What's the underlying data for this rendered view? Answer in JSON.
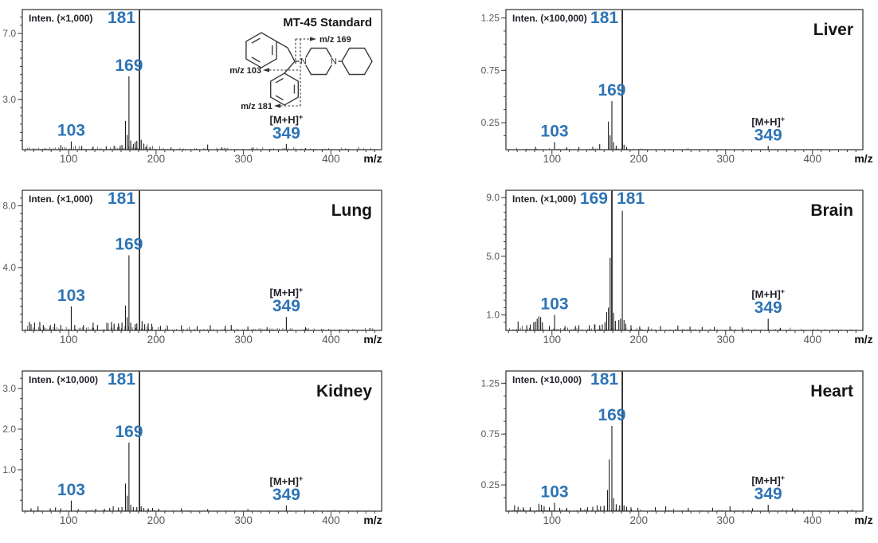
{
  "colors": {
    "peak_label_blue": "#2E74B5",
    "tick_label_gray": "#58585A",
    "axis_color": "#3D3D3D",
    "trace_color": "#1B1B1B",
    "background": "#FFFFFF"
  },
  "x_axis": {
    "label": "m/z",
    "major_ticks": [
      100,
      200,
      300,
      400
    ],
    "minor_step": 10,
    "range": [
      47,
      458
    ]
  },
  "annotations": {
    "mh_base": "[M+H]",
    "mh_sup": "+"
  },
  "structure_labels": {
    "frag_169": "m/z 169",
    "frag_103": "m/z 103",
    "frag_181": "m/z 181",
    "nitrogen": "N"
  },
  "chart_data": [
    {
      "type": "bar",
      "id": "mt45-standard",
      "title": "MT-45 Standard",
      "intensity_label": "Inten. (×1,000)",
      "ylabel": "Intensity (×1,000)",
      "y_ticks": [
        {
          "v": 3,
          "label": "3.0"
        },
        {
          "v": 7,
          "label": "7.0"
        }
      ],
      "y_max": 8.45,
      "y_minor_step": 0.5,
      "noise_level": 0.22,
      "seed": 11,
      "has_structure": true,
      "peaks": [
        [
          91,
          0.22
        ],
        [
          103,
          0.45
        ],
        [
          115,
          0.18
        ],
        [
          128,
          0.15
        ],
        [
          143,
          0.16
        ],
        [
          152,
          0.2
        ],
        [
          159,
          0.2
        ],
        [
          161,
          0.24
        ],
        [
          165,
          1.7
        ],
        [
          167,
          0.85
        ],
        [
          169,
          4.4
        ],
        [
          171,
          0.5
        ],
        [
          174,
          0.3
        ],
        [
          176,
          0.42
        ],
        [
          178,
          0.48
        ],
        [
          181,
          null
        ],
        [
          183,
          0.55
        ],
        [
          186,
          0.32
        ],
        [
          189,
          0.14
        ],
        [
          193,
          0.12
        ],
        [
          217,
          0.09
        ],
        [
          259,
          0.26
        ],
        [
          275,
          0.1
        ],
        [
          311,
          0.09
        ],
        [
          349,
          0.3
        ],
        [
          371,
          0.05
        ]
      ],
      "labels": [
        {
          "mz": 103,
          "text": "103",
          "pos": "above"
        },
        {
          "mz": 169,
          "text": "169",
          "pos": "above"
        },
        {
          "mz": 181,
          "text": "181",
          "pos": "top-left"
        },
        {
          "mz": 349,
          "text": "349",
          "pos": "above",
          "mh": true
        }
      ]
    },
    {
      "type": "bar",
      "id": "liver",
      "title": "Liver",
      "intensity_label": "Inten. (×100,000)",
      "ylabel": "Intensity (×100,000)",
      "y_ticks": [
        {
          "v": 0.25,
          "label": "0.25"
        },
        {
          "v": 0.75,
          "label": "0.75"
        },
        {
          "v": 1.25,
          "label": "1.25"
        }
      ],
      "y_max": 1.33,
      "y_minor_step": 0.125,
      "noise_level": 0.013,
      "seed": 22,
      "has_structure": false,
      "peaks": [
        [
          81,
          0.02
        ],
        [
          103,
          0.065
        ],
        [
          117,
          0.015
        ],
        [
          131,
          0.018
        ],
        [
          147,
          0.02
        ],
        [
          155,
          0.045
        ],
        [
          165,
          0.26
        ],
        [
          167,
          0.13
        ],
        [
          169,
          0.455
        ],
        [
          171,
          0.065
        ],
        [
          174,
          0.03
        ],
        [
          181,
          null
        ],
        [
          183,
          0.04
        ],
        [
          186,
          0.02
        ],
        [
          349,
          0.028
        ]
      ],
      "labels": [
        {
          "mz": 103,
          "text": "103",
          "pos": "above"
        },
        {
          "mz": 169,
          "text": "169",
          "pos": "above"
        },
        {
          "mz": 181,
          "text": "181",
          "pos": "top-left"
        },
        {
          "mz": 349,
          "text": "349",
          "pos": "above",
          "mh": true
        }
      ]
    },
    {
      "type": "bar",
      "id": "lung",
      "title": "Lung",
      "intensity_label": "Inten. (×1,000)",
      "ylabel": "Intensity (×1,000)",
      "y_ticks": [
        {
          "v": 4,
          "label": "4.0"
        },
        {
          "v": 8,
          "label": "8.0"
        }
      ],
      "y_max": 9.0,
      "y_minor_step": 0.5,
      "noise_level": 0.28,
      "seed": 33,
      "has_structure": false,
      "peaks": [
        [
          55,
          0.5
        ],
        [
          57,
          0.35
        ],
        [
          61,
          0.45
        ],
        [
          67,
          0.5
        ],
        [
          71,
          0.3
        ],
        [
          79,
          0.3
        ],
        [
          84,
          0.38
        ],
        [
          91,
          0.3
        ],
        [
          103,
          1.5
        ],
        [
          107,
          0.3
        ],
        [
          117,
          0.3
        ],
        [
          128,
          0.45
        ],
        [
          133,
          0.3
        ],
        [
          145,
          0.42
        ],
        [
          149,
          0.5
        ],
        [
          152,
          0.38
        ],
        [
          157,
          0.4
        ],
        [
          161,
          0.45
        ],
        [
          165,
          1.55
        ],
        [
          167,
          0.8
        ],
        [
          169,
          4.8
        ],
        [
          171,
          0.45
        ],
        [
          176,
          0.35
        ],
        [
          178,
          0.4
        ],
        [
          181,
          null
        ],
        [
          184,
          0.55
        ],
        [
          187,
          0.35
        ],
        [
          191,
          0.4
        ],
        [
          195,
          0.38
        ],
        [
          205,
          0.25
        ],
        [
          213,
          0.22
        ],
        [
          229,
          0.28
        ],
        [
          247,
          0.22
        ],
        [
          262,
          0.28
        ],
        [
          279,
          0.25
        ],
        [
          286,
          0.3
        ],
        [
          305,
          0.2
        ],
        [
          327,
          0.15
        ],
        [
          349,
          0.82
        ],
        [
          371,
          0.15
        ]
      ],
      "labels": [
        {
          "mz": 103,
          "text": "103",
          "pos": "above"
        },
        {
          "mz": 169,
          "text": "169",
          "pos": "above"
        },
        {
          "mz": 181,
          "text": "181",
          "pos": "top-left"
        },
        {
          "mz": 349,
          "text": "349",
          "pos": "above",
          "mh": true
        }
      ]
    },
    {
      "type": "bar",
      "id": "brain",
      "title": "Brain",
      "intensity_label": "Inten. (×1,000)",
      "ylabel": "Intensity (×1,000)",
      "y_ticks": [
        {
          "v": 1,
          "label": "1.0"
        },
        {
          "v": 5,
          "label": "5.0"
        },
        {
          "v": 9,
          "label": "9.0"
        }
      ],
      "y_max": 9.5,
      "y_minor_step": 0.5,
      "noise_level": 0.2,
      "seed": 44,
      "has_structure": false,
      "peaks": [
        [
          61,
          0.55
        ],
        [
          71,
          0.3
        ],
        [
          75,
          0.35
        ],
        [
          79,
          0.5
        ],
        [
          81,
          0.55
        ],
        [
          83,
          0.75
        ],
        [
          85,
          0.9
        ],
        [
          87,
          0.85
        ],
        [
          89,
          0.5
        ],
        [
          97,
          0.25
        ],
        [
          103,
          1.0
        ],
        [
          115,
          0.25
        ],
        [
          127,
          0.25
        ],
        [
          131,
          0.3
        ],
        [
          143,
          0.3
        ],
        [
          149,
          0.35
        ],
        [
          155,
          0.3
        ],
        [
          158,
          0.35
        ],
        [
          161,
          0.5
        ],
        [
          163,
          1.2
        ],
        [
          165,
          1.5
        ],
        [
          167,
          4.9
        ],
        [
          169,
          null
        ],
        [
          171,
          1.15
        ],
        [
          173,
          0.6
        ],
        [
          177,
          0.65
        ],
        [
          179,
          0.75
        ],
        [
          181,
          8.1
        ],
        [
          183,
          0.65
        ],
        [
          185,
          0.4
        ],
        [
          191,
          0.3
        ],
        [
          201,
          0.22
        ],
        [
          211,
          0.2
        ],
        [
          225,
          0.25
        ],
        [
          245,
          0.28
        ],
        [
          259,
          0.2
        ],
        [
          273,
          0.18
        ],
        [
          287,
          0.18
        ],
        [
          305,
          0.22
        ],
        [
          319,
          0.15
        ],
        [
          349,
          0.75
        ],
        [
          363,
          0.12
        ]
      ],
      "labels": [
        {
          "mz": 103,
          "text": "103",
          "pos": "above"
        },
        {
          "mz": 169,
          "text": "169",
          "pos": "top-left"
        },
        {
          "mz": 181,
          "text": "181",
          "pos": "top-right"
        },
        {
          "mz": 349,
          "text": "349",
          "pos": "above",
          "mh": true
        }
      ]
    },
    {
      "type": "bar",
      "id": "kidney",
      "title": "Kidney",
      "intensity_label": "Inten. (×10,000)",
      "ylabel": "Intensity (×10,000)",
      "y_ticks": [
        {
          "v": 1,
          "label": "1.0"
        },
        {
          "v": 2,
          "label": "2.0"
        },
        {
          "v": 3,
          "label": "3.0"
        }
      ],
      "y_max": 3.43,
      "y_minor_step": 0.25,
      "noise_level": 0.03,
      "seed": 55,
      "has_structure": false,
      "peaks": [
        [
          57,
          0.05
        ],
        [
          65,
          0.1
        ],
        [
          79,
          0.05
        ],
        [
          85,
          0.07
        ],
        [
          91,
          0.05
        ],
        [
          103,
          0.24
        ],
        [
          111,
          0.03
        ],
        [
          131,
          0.04
        ],
        [
          141,
          0.04
        ],
        [
          147,
          0.06
        ],
        [
          151,
          0.1
        ],
        [
          157,
          0.07
        ],
        [
          161,
          0.08
        ],
        [
          165,
          0.66
        ],
        [
          167,
          0.36
        ],
        [
          169,
          1.67
        ],
        [
          171,
          0.14
        ],
        [
          174,
          0.08
        ],
        [
          178,
          0.08
        ],
        [
          181,
          null
        ],
        [
          183,
          0.1
        ],
        [
          186,
          0.06
        ],
        [
          191,
          0.05
        ],
        [
          196,
          0.06
        ],
        [
          203,
          0.04
        ],
        [
          229,
          0.05
        ],
        [
          259,
          0.03
        ],
        [
          305,
          0.03
        ],
        [
          349,
          0.12
        ]
      ],
      "labels": [
        {
          "mz": 103,
          "text": "103",
          "pos": "above"
        },
        {
          "mz": 169,
          "text": "169",
          "pos": "above"
        },
        {
          "mz": 181,
          "text": "181",
          "pos": "top-left"
        },
        {
          "mz": 349,
          "text": "349",
          "pos": "above",
          "mh": true
        }
      ]
    },
    {
      "type": "bar",
      "id": "heart",
      "title": "Heart",
      "intensity_label": "Inten. (×10,000)",
      "ylabel": "Intensity (×10,000)",
      "y_ticks": [
        {
          "v": 0.25,
          "label": "0.25"
        },
        {
          "v": 0.75,
          "label": "0.75"
        },
        {
          "v": 1.25,
          "label": "1.25"
        }
      ],
      "y_max": 1.37,
      "y_minor_step": 0.125,
      "noise_level": 0.022,
      "seed": 66,
      "has_structure": false,
      "peaks": [
        [
          57,
          0.05
        ],
        [
          61,
          0.035
        ],
        [
          67,
          0.03
        ],
        [
          75,
          0.03
        ],
        [
          85,
          0.065
        ],
        [
          88,
          0.055
        ],
        [
          91,
          0.04
        ],
        [
          97,
          0.03
        ],
        [
          103,
          0.075
        ],
        [
          109,
          0.025
        ],
        [
          117,
          0.025
        ],
        [
          133,
          0.025
        ],
        [
          141,
          0.03
        ],
        [
          147,
          0.035
        ],
        [
          152,
          0.05
        ],
        [
          156,
          0.04
        ],
        [
          160,
          0.045
        ],
        [
          164,
          0.2
        ],
        [
          166,
          0.5
        ],
        [
          169,
          0.83
        ],
        [
          171,
          0.12
        ],
        [
          174,
          0.06
        ],
        [
          178,
          0.05
        ],
        [
          181,
          null
        ],
        [
          183,
          0.05
        ],
        [
          186,
          0.035
        ],
        [
          191,
          0.03
        ],
        [
          199,
          0.025
        ],
        [
          219,
          0.03
        ],
        [
          231,
          0.04
        ],
        [
          257,
          0.025
        ],
        [
          285,
          0.025
        ],
        [
          305,
          0.04
        ],
        [
          331,
          0.02
        ],
        [
          349,
          0.055
        ],
        [
          377,
          0.02
        ]
      ],
      "labels": [
        {
          "mz": 103,
          "text": "103",
          "pos": "above"
        },
        {
          "mz": 169,
          "text": "169",
          "pos": "above"
        },
        {
          "mz": 181,
          "text": "181",
          "pos": "top-left"
        },
        {
          "mz": 349,
          "text": "349",
          "pos": "above",
          "mh": true
        }
      ]
    }
  ]
}
